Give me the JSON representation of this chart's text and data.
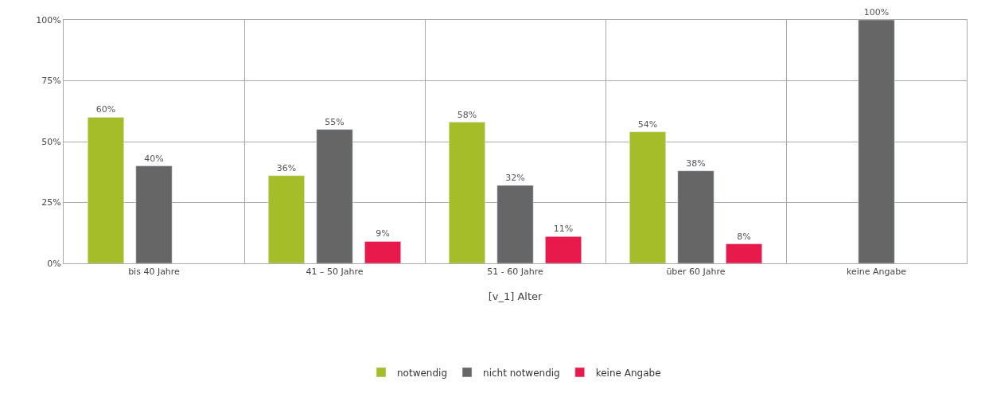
{
  "chart_data": {
    "type": "bar",
    "xlabel": "[v_1] Alter",
    "categories": [
      "bis 40 Jahre",
      "41 – 50 Jahre",
      "51 - 60 Jahre",
      "über 60 Jahre",
      "keine Angabe"
    ],
    "series": [
      {
        "name": "notwendig",
        "color": "#a5bd29",
        "values": [
          60,
          36,
          58,
          54,
          null
        ],
        "value_labels": [
          "60%",
          "36%",
          "58%",
          "54%",
          null
        ]
      },
      {
        "name": "nicht notwendig",
        "color": "#666666",
        "values": [
          40,
          55,
          32,
          38,
          100
        ],
        "value_labels": [
          "40%",
          "55%",
          "32%",
          "38%",
          "100%"
        ]
      },
      {
        "name": "keine Angabe",
        "color": "#e8194b",
        "values": [
          null,
          9,
          11,
          8,
          null
        ],
        "value_labels": [
          null,
          "9%",
          "11%",
          "8%",
          null
        ]
      }
    ],
    "ylim": [
      0,
      100
    ],
    "yticks": [
      {
        "value": 0,
        "label": "0%"
      },
      {
        "value": 25,
        "label": "25%"
      },
      {
        "value": 50,
        "label": "50%"
      },
      {
        "value": 75,
        "label": "75%"
      },
      {
        "value": 100,
        "label": "100%"
      }
    ],
    "grid": true,
    "legend": "bottom"
  }
}
